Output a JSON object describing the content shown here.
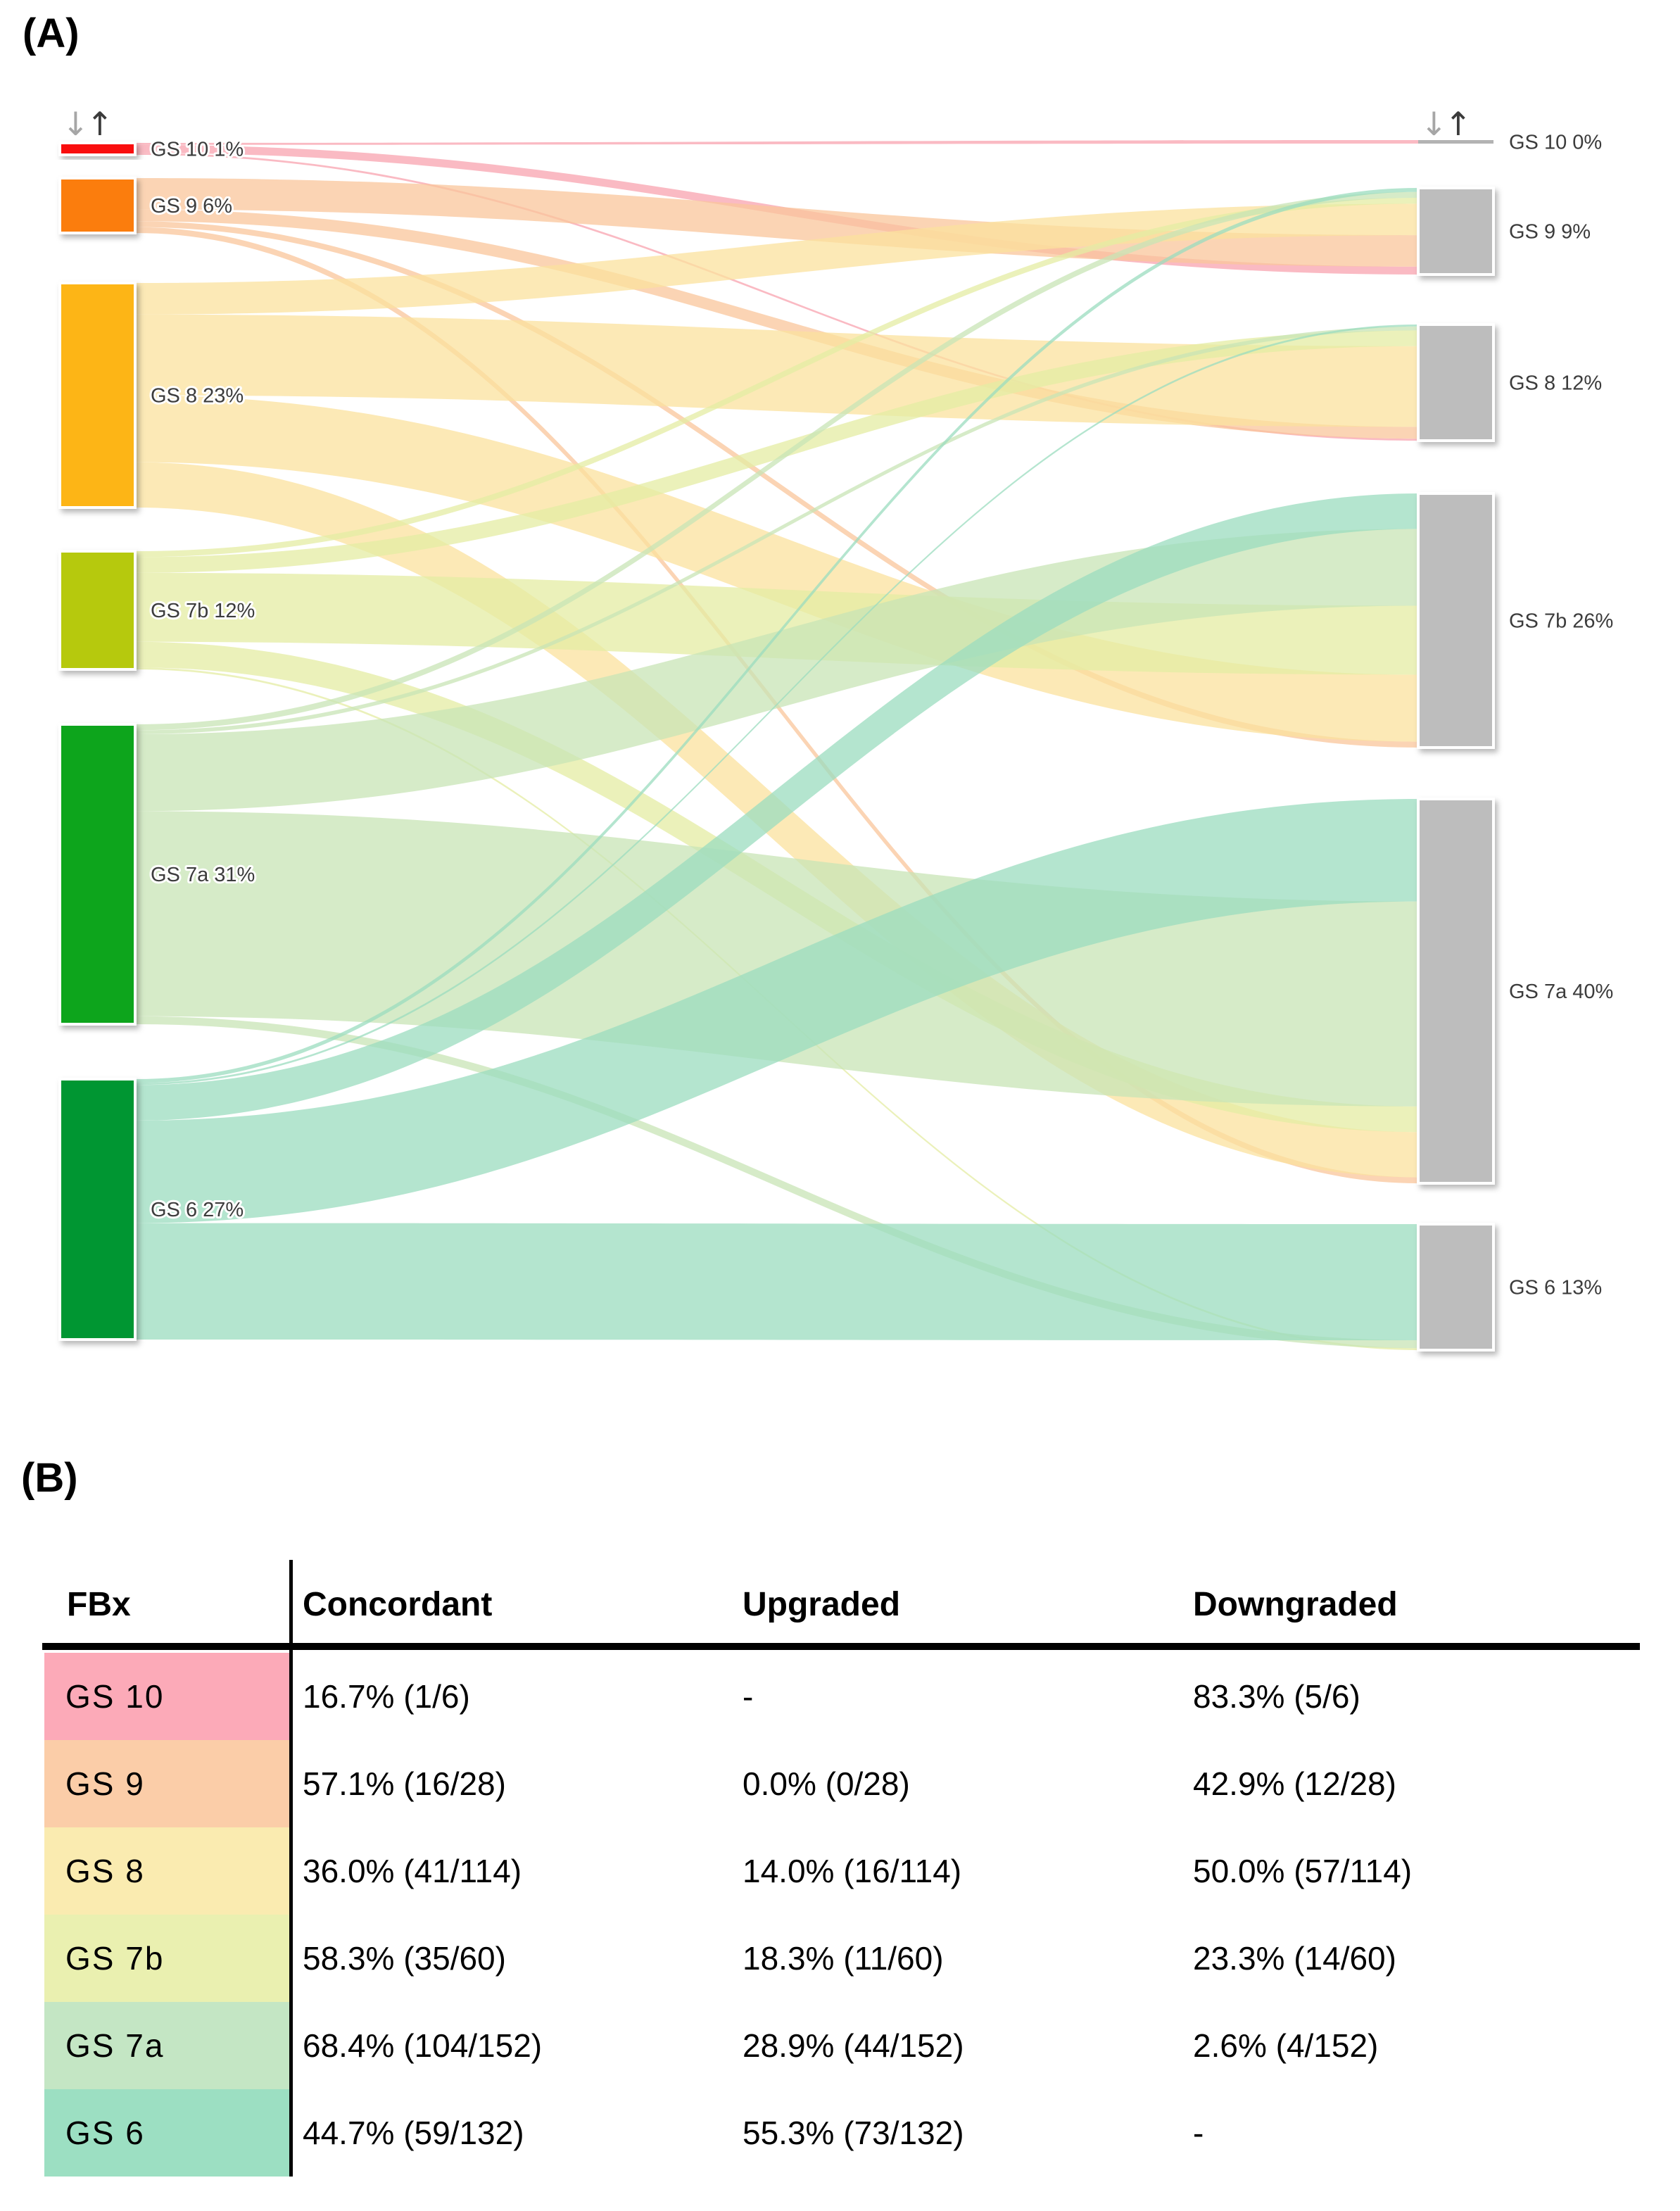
{
  "panelA": {
    "title": "(A)",
    "sort_icons": {
      "down": "↓",
      "up": "↑"
    },
    "chart_data": {
      "type": "sankey",
      "flow_direction": "left-to-right",
      "unit": "cases",
      "left_nodes": [
        {
          "id": "GS 10",
          "label": "GS 10 1%",
          "percent": 1,
          "cases": 6,
          "color": "#f90b0b"
        },
        {
          "id": "GS 9",
          "label": "GS 9 6%",
          "percent": 6,
          "cases": 28,
          "color": "#fb7d09"
        },
        {
          "id": "GS 8",
          "label": "GS 8 23%",
          "percent": 23,
          "cases": 114,
          "color": "#fdb515"
        },
        {
          "id": "GS 7b",
          "label": "GS 7b 12%",
          "percent": 12,
          "cases": 60,
          "color": "#b6c907"
        },
        {
          "id": "GS 7a",
          "label": "GS 7a 31%",
          "percent": 31,
          "cases": 152,
          "color": "#0fa51d"
        },
        {
          "id": "GS 6",
          "label": "GS 6 27%",
          "percent": 27,
          "cases": 132,
          "color": "#029631"
        }
      ],
      "right_nodes": [
        {
          "id": "GS 10",
          "label": "GS 10 0%",
          "percent": 0,
          "cases": 1
        },
        {
          "id": "GS 9",
          "label": "GS 9 9%",
          "percent": 9,
          "cases": 44
        },
        {
          "id": "GS 8",
          "label": "GS 8 12%",
          "percent": 12,
          "cases": 59
        },
        {
          "id": "GS 7b",
          "label": "GS 7b 26%",
          "percent": 26,
          "cases": 129
        },
        {
          "id": "GS 7a",
          "label": "GS 7a 40%",
          "percent": 40,
          "cases": 195
        },
        {
          "id": "GS 6",
          "label": "GS 6 13%",
          "percent": 13,
          "cases": 64
        }
      ],
      "right_node_color": "#bdbdbd",
      "link_colors": {
        "GS 10": "#f8a3af",
        "GS 9": "#f9c69b",
        "GS 8": "#fbe29e",
        "GS 7b": "#e4eca3",
        "GS 7a": "#c8e4b6",
        "GS 6": "#9bdcbf"
      },
      "links": [
        {
          "source": "GS 10",
          "target": "GS 10",
          "value": 1
        },
        {
          "source": "GS 10",
          "target": "GS 9",
          "value": 4
        },
        {
          "source": "GS 10",
          "target": "GS 8",
          "value": 1
        },
        {
          "source": "GS 9",
          "target": "GS 9",
          "value": 16
        },
        {
          "source": "GS 9",
          "target": "GS 8",
          "value": 6
        },
        {
          "source": "GS 9",
          "target": "GS 7b",
          "value": 3
        },
        {
          "source": "GS 9",
          "target": "GS 7a",
          "value": 3
        },
        {
          "source": "GS 8",
          "target": "GS 9",
          "value": 16
        },
        {
          "source": "GS 8",
          "target": "GS 8",
          "value": 41
        },
        {
          "source": "GS 8",
          "target": "GS 7b",
          "value": 34
        },
        {
          "source": "GS 8",
          "target": "GS 7a",
          "value": 23
        },
        {
          "source": "GS 7b",
          "target": "GS 9",
          "value": 3
        },
        {
          "source": "GS 7b",
          "target": "GS 8",
          "value": 8
        },
        {
          "source": "GS 7b",
          "target": "GS 7b",
          "value": 35
        },
        {
          "source": "GS 7b",
          "target": "GS 7a",
          "value": 13
        },
        {
          "source": "GS 7b",
          "target": "GS 6",
          "value": 1
        },
        {
          "source": "GS 7a",
          "target": "GS 9",
          "value": 3
        },
        {
          "source": "GS 7a",
          "target": "GS 8",
          "value": 2
        },
        {
          "source": "GS 7a",
          "target": "GS 7b",
          "value": 39
        },
        {
          "source": "GS 7a",
          "target": "GS 7a",
          "value": 104
        },
        {
          "source": "GS 7a",
          "target": "GS 6",
          "value": 4
        },
        {
          "source": "GS 6",
          "target": "GS 9",
          "value": 2
        },
        {
          "source": "GS 6",
          "target": "GS 8",
          "value": 1
        },
        {
          "source": "GS 6",
          "target": "GS 7b",
          "value": 18
        },
        {
          "source": "GS 6",
          "target": "GS 7a",
          "value": 52
        },
        {
          "source": "GS 6",
          "target": "GS 6",
          "value": 59
        }
      ]
    }
  },
  "panelB": {
    "title": "(B)",
    "table": {
      "headers": [
        "FBx",
        "Concordant",
        "Upgraded",
        "Downgraded"
      ],
      "rows": [
        {
          "label": "GS 10",
          "bg": "#fcaab8",
          "concordant": "16.7% (1/6)",
          "upgraded": "-",
          "downgraded": "83.3% (5/6)"
        },
        {
          "label": "GS 9",
          "bg": "#fbcda8",
          "concordant": "57.1% (16/28)",
          "upgraded": "0.0% (0/28)",
          "downgraded": "42.9% (12/28)"
        },
        {
          "label": "GS 8",
          "bg": "#faebb0",
          "concordant": "36.0% (41/114)",
          "upgraded": "14.0% (16/114)",
          "downgraded": "50.0% (57/114)"
        },
        {
          "label": "GS 7b",
          "bg": "#eaf0b0",
          "concordant": "58.3% (35/60)",
          "upgraded": "18.3% (11/60)",
          "downgraded": "23.3% (14/60)"
        },
        {
          "label": "GS 7a",
          "bg": "#c4e6c4",
          "concordant": "68.4% (104/152)",
          "upgraded": "28.9% (44/152)",
          "downgraded": "2.6% (4/152)"
        },
        {
          "label": "GS 6",
          "bg": "#9cdfc2",
          "concordant": "44.7% (59/132)",
          "upgraded": "55.3% (73/132)",
          "downgraded": "-"
        }
      ]
    }
  }
}
